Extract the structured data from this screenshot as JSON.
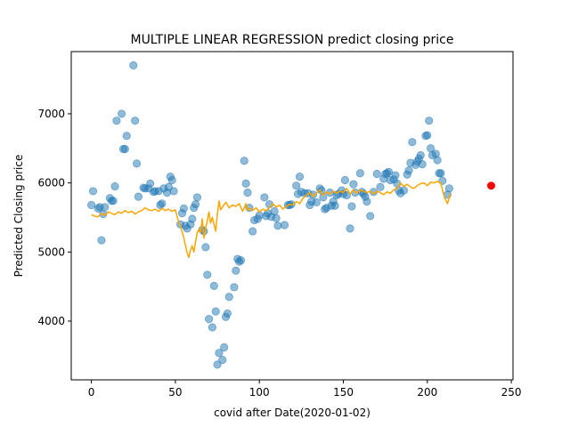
{
  "chart_data": {
    "type": "scatter",
    "title": "MULTIPLE LINEAR REGRESSION predict closing price",
    "xlabel": "covid after Date(2020-01-02)",
    "ylabel": "Predicted Closing price",
    "xlim": [
      -12,
      251
    ],
    "ylim": [
      3150,
      7900
    ],
    "xticks": [
      0,
      50,
      100,
      150,
      200,
      250
    ],
    "yticks": [
      4000,
      5000,
      6000,
      7000
    ],
    "grid": false,
    "colors": {
      "actual": "#1f77b4",
      "predicted": "#ffa500",
      "forecast": "#ff0000"
    },
    "series": [
      {
        "kind": "scatter",
        "points": [
          [
            0,
            5680
          ],
          [
            1,
            5880
          ],
          [
            4,
            5630
          ],
          [
            5,
            5650
          ],
          [
            6,
            5170
          ],
          [
            7,
            5550
          ],
          [
            8,
            5650
          ],
          [
            11,
            5780
          ],
          [
            12,
            5740
          ],
          [
            13,
            5740
          ],
          [
            14,
            5950
          ],
          [
            15,
            6900
          ],
          [
            18,
            7000
          ],
          [
            19,
            6490
          ],
          [
            20,
            6490
          ],
          [
            21,
            6680
          ],
          [
            25,
            7700
          ],
          [
            26,
            6900
          ],
          [
            27,
            6280
          ],
          [
            28,
            5800
          ],
          [
            31,
            5930
          ],
          [
            32,
            5920
          ],
          [
            34,
            5920
          ],
          [
            35,
            5990
          ],
          [
            37,
            5870
          ],
          [
            38,
            5880
          ],
          [
            40,
            5880
          ],
          [
            41,
            5680
          ],
          [
            42,
            5700
          ],
          [
            43,
            5920
          ],
          [
            45,
            5860
          ],
          [
            46,
            5940
          ],
          [
            47,
            6090
          ],
          [
            48,
            6040
          ],
          [
            49,
            5880
          ],
          [
            53,
            5400
          ],
          [
            54,
            5560
          ],
          [
            55,
            5630
          ],
          [
            56,
            5380
          ],
          [
            57,
            5340
          ],
          [
            59,
            5400
          ],
          [
            60,
            5480
          ],
          [
            61,
            5640
          ],
          [
            62,
            5690
          ],
          [
            63,
            5790
          ],
          [
            66,
            5320
          ],
          [
            67,
            5300
          ],
          [
            68,
            5070
          ],
          [
            69,
            4670
          ],
          [
            70,
            4030
          ],
          [
            72,
            3910
          ],
          [
            73,
            4510
          ],
          [
            74,
            4140
          ],
          [
            75,
            3370
          ],
          [
            76,
            3540
          ],
          [
            78,
            3440
          ],
          [
            79,
            3620
          ],
          [
            80,
            4060
          ],
          [
            81,
            4110
          ],
          [
            82,
            4350
          ],
          [
            85,
            4490
          ],
          [
            86,
            4730
          ],
          [
            87,
            4900
          ],
          [
            88,
            4860
          ],
          [
            89,
            4880
          ],
          [
            91,
            6320
          ],
          [
            92,
            5990
          ],
          [
            93,
            5860
          ],
          [
            94,
            5640
          ],
          [
            96,
            5300
          ],
          [
            97,
            5460
          ],
          [
            99,
            5480
          ],
          [
            100,
            5530
          ],
          [
            103,
            5790
          ],
          [
            104,
            5520
          ],
          [
            105,
            5560
          ],
          [
            106,
            5690
          ],
          [
            107,
            5510
          ],
          [
            109,
            5590
          ],
          [
            110,
            5490
          ],
          [
            111,
            5380
          ],
          [
            115,
            5390
          ],
          [
            117,
            5680
          ],
          [
            118,
            5680
          ],
          [
            119,
            5690
          ],
          [
            122,
            5960
          ],
          [
            123,
            5840
          ],
          [
            124,
            6090
          ],
          [
            125,
            5870
          ],
          [
            127,
            5850
          ],
          [
            129,
            5850
          ],
          [
            130,
            5680
          ],
          [
            131,
            5730
          ],
          [
            132,
            5830
          ],
          [
            134,
            5720
          ],
          [
            136,
            5920
          ],
          [
            137,
            5890
          ],
          [
            138,
            5790
          ],
          [
            139,
            5620
          ],
          [
            140,
            5640
          ],
          [
            142,
            5860
          ],
          [
            143,
            5670
          ],
          [
            144,
            5730
          ],
          [
            145,
            5670
          ],
          [
            146,
            5820
          ],
          [
            147,
            5840
          ],
          [
            149,
            5890
          ],
          [
            150,
            5840
          ],
          [
            151,
            6040
          ],
          [
            152,
            5820
          ],
          [
            154,
            5340
          ],
          [
            155,
            5660
          ],
          [
            156,
            5980
          ],
          [
            157,
            5860
          ],
          [
            160,
            6140
          ],
          [
            161,
            5870
          ],
          [
            162,
            5840
          ],
          [
            163,
            5800
          ],
          [
            164,
            5730
          ],
          [
            166,
            5520
          ],
          [
            168,
            5870
          ],
          [
            170,
            6130
          ],
          [
            172,
            5940
          ],
          [
            174,
            6060
          ],
          [
            175,
            6130
          ],
          [
            176,
            6140
          ],
          [
            177,
            6160
          ],
          [
            178,
            6040
          ],
          [
            180,
            6050
          ],
          [
            181,
            6110
          ],
          [
            182,
            5990
          ],
          [
            183,
            5890
          ],
          [
            184,
            5850
          ],
          [
            186,
            5890
          ],
          [
            188,
            6120
          ],
          [
            189,
            6180
          ],
          [
            190,
            6290
          ],
          [
            191,
            6590
          ],
          [
            193,
            6260
          ],
          [
            194,
            6310
          ],
          [
            195,
            6350
          ],
          [
            196,
            6400
          ],
          [
            197,
            6270
          ],
          [
            199,
            6680
          ],
          [
            200,
            6690
          ],
          [
            201,
            6900
          ],
          [
            202,
            6500
          ],
          [
            203,
            6400
          ],
          [
            205,
            6420
          ],
          [
            206,
            6330
          ],
          [
            207,
            6140
          ],
          [
            208,
            6140
          ],
          [
            209,
            6030
          ],
          [
            212,
            5830
          ],
          [
            213,
            5920
          ]
        ]
      },
      {
        "kind": "line",
        "points": [
          [
            0,
            5540
          ],
          [
            2,
            5520
          ],
          [
            4,
            5510
          ],
          [
            6,
            5560
          ],
          [
            8,
            5530
          ],
          [
            10,
            5580
          ],
          [
            12,
            5560
          ],
          [
            14,
            5540
          ],
          [
            16,
            5580
          ],
          [
            18,
            5560
          ],
          [
            20,
            5600
          ],
          [
            22,
            5570
          ],
          [
            24,
            5590
          ],
          [
            26,
            5550
          ],
          [
            28,
            5580
          ],
          [
            30,
            5600
          ],
          [
            32,
            5640
          ],
          [
            34,
            5610
          ],
          [
            36,
            5600
          ],
          [
            38,
            5620
          ],
          [
            40,
            5590
          ],
          [
            42,
            5630
          ],
          [
            44,
            5600
          ],
          [
            46,
            5620
          ],
          [
            48,
            5590
          ],
          [
            50,
            5610
          ],
          [
            51,
            5520
          ],
          [
            52,
            5420
          ],
          [
            53,
            5380
          ],
          [
            55,
            5200
          ],
          [
            57,
            4990
          ],
          [
            58,
            4920
          ],
          [
            59,
            5030
          ],
          [
            60,
            5090
          ],
          [
            61,
            5000
          ],
          [
            62,
            5150
          ],
          [
            63,
            5280
          ],
          [
            64,
            5330
          ],
          [
            65,
            5280
          ],
          [
            66,
            5480
          ],
          [
            67,
            5200
          ],
          [
            68,
            5350
          ],
          [
            69,
            5450
          ],
          [
            70,
            5580
          ],
          [
            71,
            5420
          ],
          [
            72,
            5500
          ],
          [
            74,
            5300
          ],
          [
            75,
            5560
          ],
          [
            76,
            5740
          ],
          [
            77,
            5610
          ],
          [
            78,
            5650
          ],
          [
            80,
            5720
          ],
          [
            82,
            5640
          ],
          [
            84,
            5680
          ],
          [
            86,
            5660
          ],
          [
            88,
            5700
          ],
          [
            90,
            5590
          ],
          [
            91,
            5640
          ],
          [
            92,
            5700
          ],
          [
            93,
            5600
          ],
          [
            94,
            5640
          ],
          [
            96,
            5600
          ],
          [
            98,
            5640
          ],
          [
            100,
            5580
          ],
          [
            102,
            5620
          ],
          [
            104,
            5600
          ],
          [
            106,
            5640
          ],
          [
            108,
            5700
          ],
          [
            110,
            5650
          ],
          [
            112,
            5680
          ],
          [
            114,
            5620
          ],
          [
            116,
            5660
          ],
          [
            118,
            5690
          ],
          [
            120,
            5680
          ],
          [
            122,
            5730
          ],
          [
            124,
            5700
          ],
          [
            126,
            5780
          ],
          [
            128,
            5820
          ],
          [
            130,
            5860
          ],
          [
            132,
            5800
          ],
          [
            134,
            5850
          ],
          [
            136,
            5900
          ],
          [
            138,
            5820
          ],
          [
            140,
            5870
          ],
          [
            142,
            5840
          ],
          [
            144,
            5880
          ],
          [
            146,
            5850
          ],
          [
            148,
            5880
          ],
          [
            150,
            5860
          ],
          [
            152,
            5920
          ],
          [
            154,
            5840
          ],
          [
            156,
            5900
          ],
          [
            158,
            5850
          ],
          [
            160,
            5900
          ],
          [
            162,
            5880
          ],
          [
            164,
            5860
          ],
          [
            166,
            5880
          ],
          [
            168,
            5840
          ],
          [
            170,
            5880
          ],
          [
            172,
            5860
          ],
          [
            174,
            5830
          ],
          [
            176,
            5870
          ],
          [
            178,
            5850
          ],
          [
            180,
            5900
          ],
          [
            182,
            5920
          ],
          [
            184,
            6000
          ],
          [
            186,
            5950
          ],
          [
            188,
            5980
          ],
          [
            190,
            5940
          ],
          [
            192,
            5920
          ],
          [
            194,
            5960
          ],
          [
            196,
            5990
          ],
          [
            198,
            6000
          ],
          [
            200,
            5960
          ],
          [
            202,
            6010
          ],
          [
            204,
            6000
          ],
          [
            206,
            6020
          ],
          [
            208,
            6000
          ],
          [
            210,
            5800
          ],
          [
            212,
            5700
          ],
          [
            214,
            5850
          ]
        ]
      },
      {
        "kind": "forecast-point",
        "points": [
          [
            238,
            5960
          ]
        ]
      }
    ]
  }
}
